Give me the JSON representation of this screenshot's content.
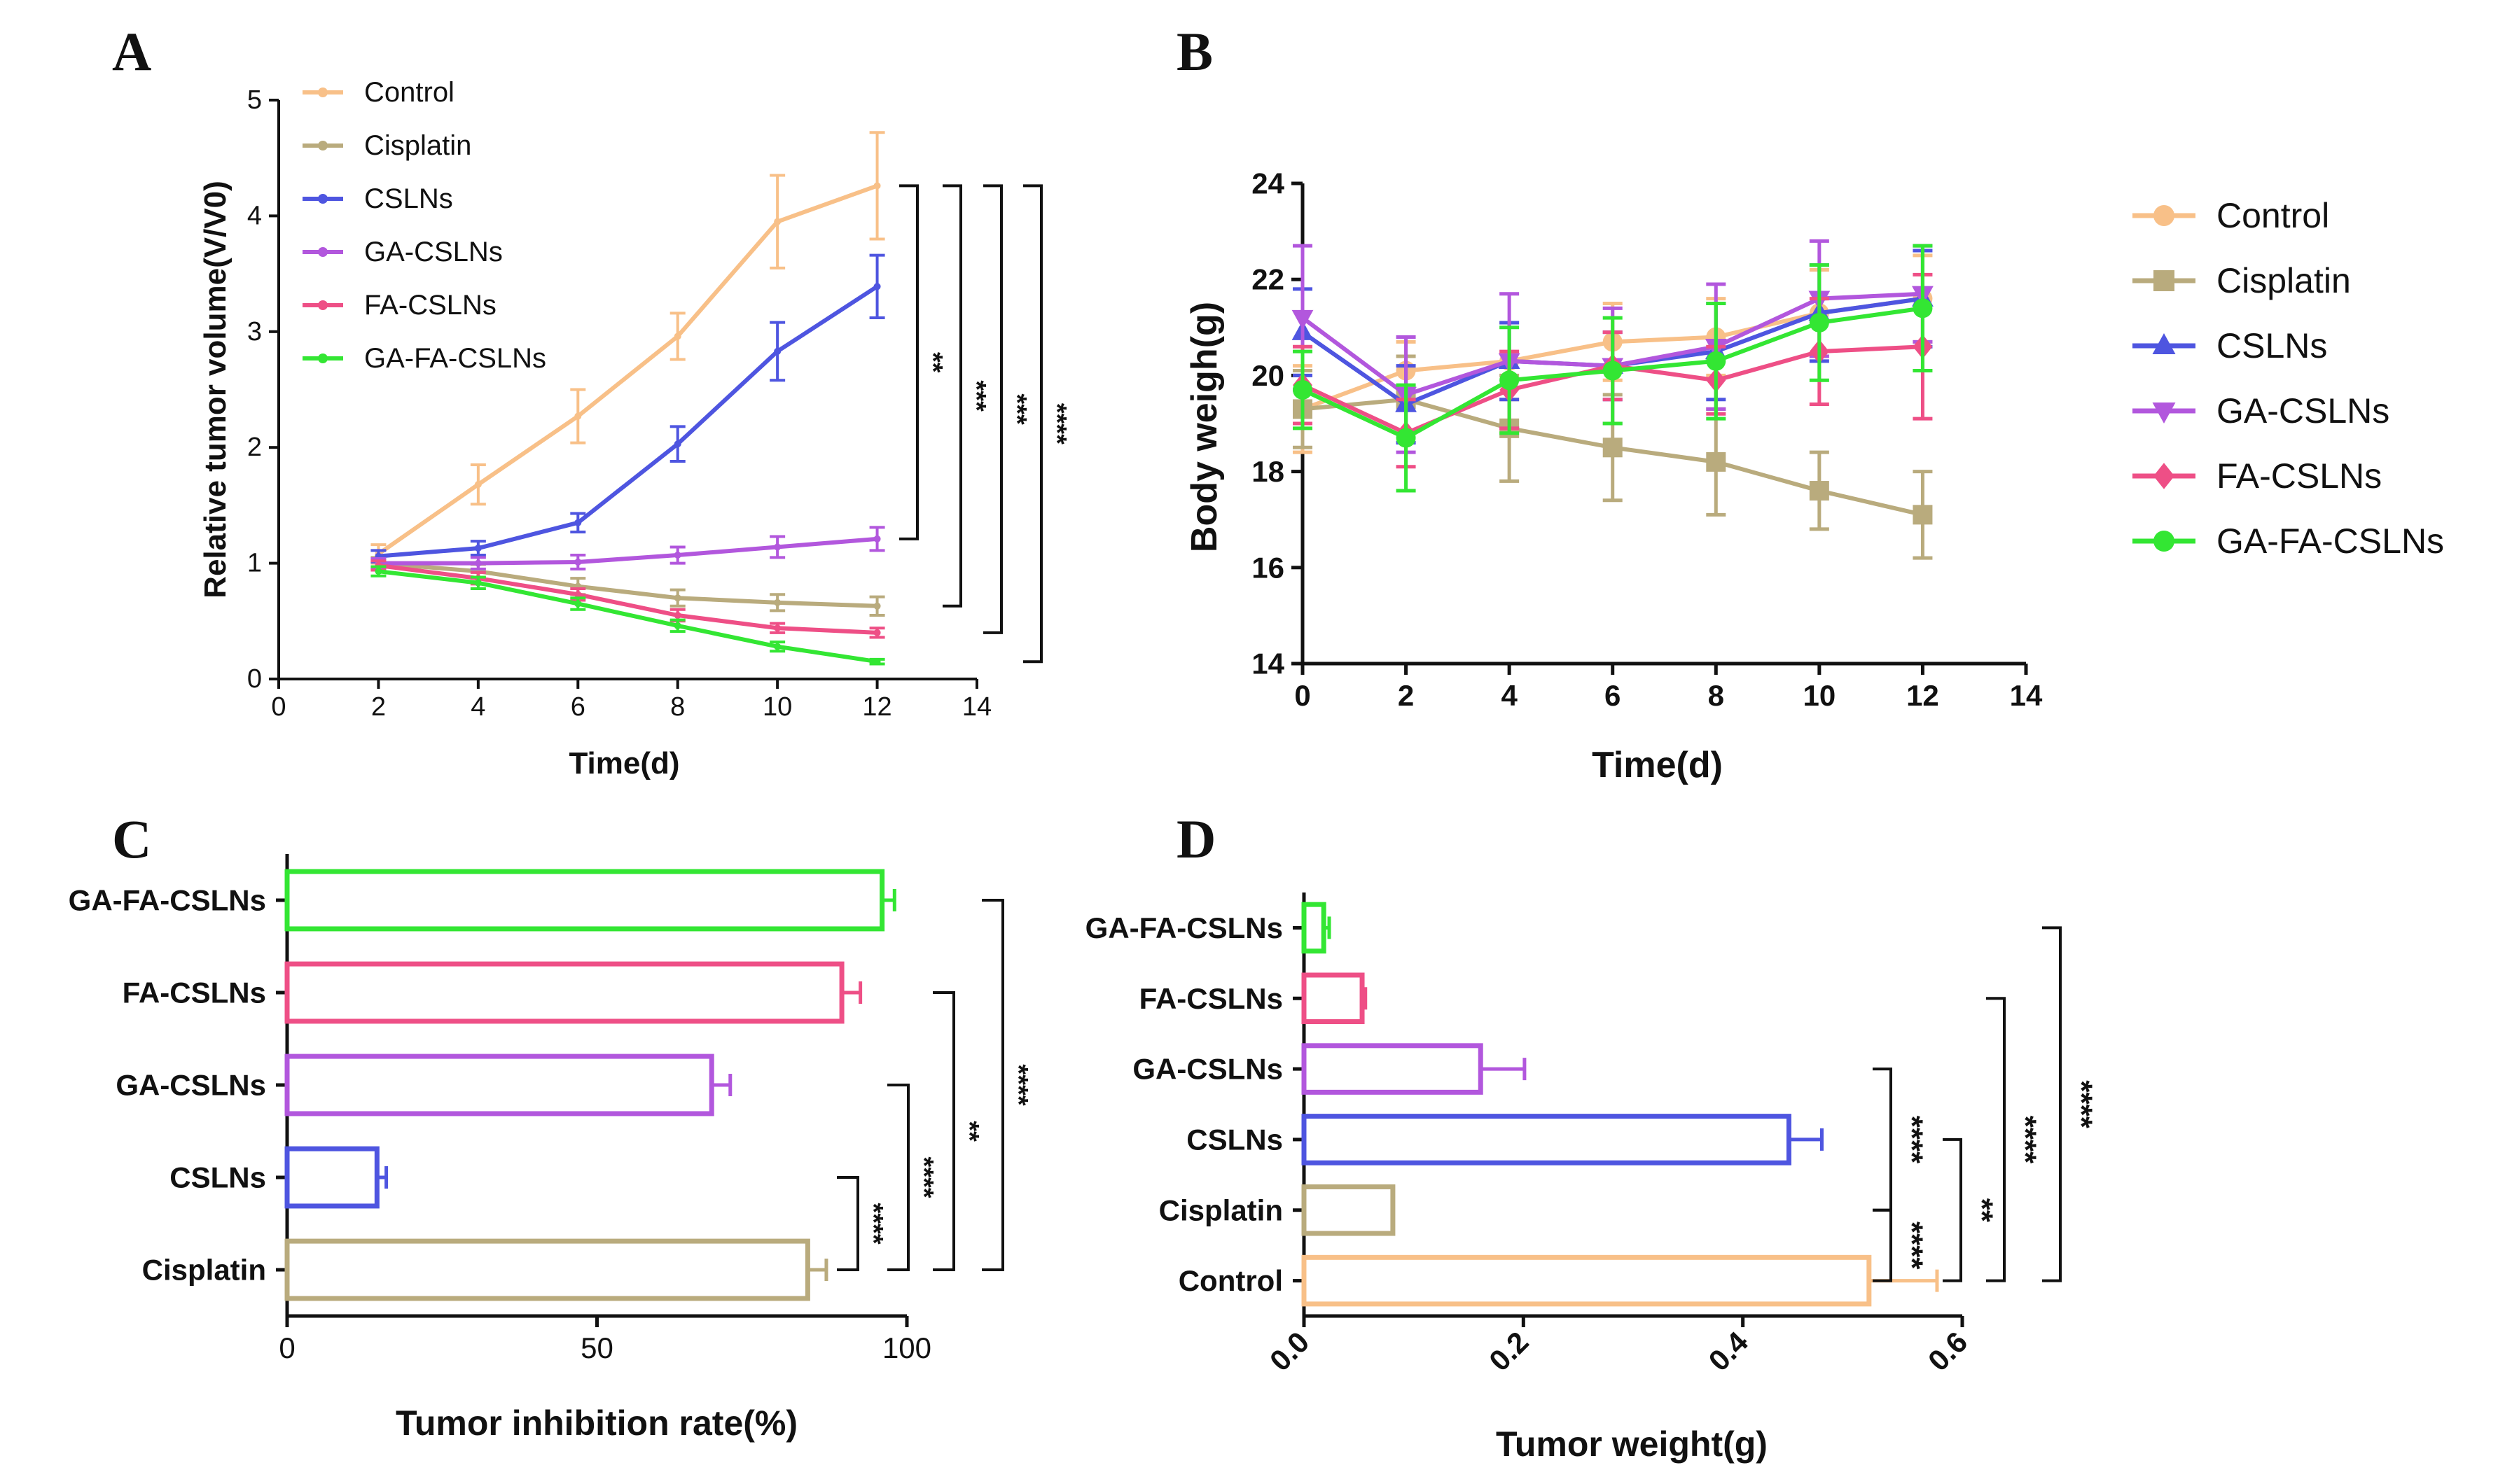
{
  "colors": {
    "Control": "#f8c088",
    "Cisplatin": "#b9ab7d",
    "CSLNs": "#4e55e0",
    "GA-CSLNs": "#b257dd",
    "FA-CSLNs": "#ee4f86",
    "GA-FA-CSLNs": "#33e633"
  },
  "chart_data": [
    {
      "panel": "A",
      "type": "line",
      "xlabel": "Time(d)",
      "ylabel": "Relative tumor volume(V/V0)",
      "xlim": [
        0,
        14
      ],
      "ylim": [
        0,
        5
      ],
      "xticks": [
        "0",
        "2",
        "4",
        "6",
        "8",
        "10",
        "12",
        "14"
      ],
      "yticks": [
        "0",
        "1",
        "2",
        "3",
        "4",
        "5"
      ],
      "x": [
        2,
        4,
        6,
        8,
        10,
        12
      ],
      "legend": "top-left",
      "series": [
        {
          "name": "Control",
          "values": [
            1.08,
            1.68,
            2.27,
            2.96,
            3.95,
            4.26
          ],
          "err": [
            0.08,
            0.17,
            0.23,
            0.2,
            0.4,
            0.46
          ]
        },
        {
          "name": "Cisplatin",
          "values": [
            1.0,
            0.93,
            0.8,
            0.7,
            0.66,
            0.63
          ],
          "err": [
            0.05,
            0.06,
            0.07,
            0.07,
            0.07,
            0.08
          ]
        },
        {
          "name": "CSLNs",
          "values": [
            1.06,
            1.13,
            1.35,
            2.03,
            2.83,
            3.39
          ],
          "err": [
            0.05,
            0.06,
            0.08,
            0.15,
            0.25,
            0.27
          ]
        },
        {
          "name": "GA-CSLNs",
          "values": [
            1.0,
            1.0,
            1.01,
            1.07,
            1.14,
            1.21
          ],
          "err": [
            0.04,
            0.05,
            0.06,
            0.07,
            0.09,
            0.1
          ]
        },
        {
          "name": "FA-CSLNs",
          "values": [
            0.98,
            0.87,
            0.73,
            0.55,
            0.44,
            0.4
          ],
          "err": [
            0.04,
            0.05,
            0.05,
            0.05,
            0.04,
            0.04
          ]
        },
        {
          "name": "GA-FA-CSLNs",
          "values": [
            0.93,
            0.83,
            0.65,
            0.46,
            0.28,
            0.15
          ],
          "err": [
            0.04,
            0.05,
            0.05,
            0.05,
            0.04,
            0.02
          ]
        }
      ],
      "significance": [
        "**",
        "***",
        "***",
        "****"
      ]
    },
    {
      "panel": "B",
      "type": "line",
      "xlabel": "Time(d)",
      "ylabel": "Body weigh(g)",
      "xlim": [
        0,
        14
      ],
      "ylim": [
        14,
        24
      ],
      "xticks": [
        "0",
        "2",
        "4",
        "6",
        "8",
        "10",
        "12",
        "14"
      ],
      "yticks": [
        "14",
        "16",
        "18",
        "20",
        "22",
        "24"
      ],
      "x": [
        0,
        2,
        4,
        6,
        8,
        10,
        12
      ],
      "legend": "right",
      "series": [
        {
          "name": "Control",
          "marker": "circle",
          "values": [
            19.3,
            20.1,
            20.3,
            20.7,
            20.8,
            21.3,
            21.6
          ],
          "err": [
            0.9,
            0.6,
            0.8,
            0.8,
            0.8,
            0.9,
            0.9
          ]
        },
        {
          "name": "Cisplatin",
          "marker": "square",
          "values": [
            19.3,
            19.5,
            18.9,
            18.5,
            18.2,
            17.6,
            17.1
          ],
          "err": [
            0.8,
            0.9,
            1.1,
            1.1,
            1.1,
            0.8,
            0.9
          ]
        },
        {
          "name": "CSLNs",
          "marker": "triangle-up",
          "values": [
            20.9,
            19.4,
            20.3,
            20.2,
            20.5,
            21.3,
            21.6
          ],
          "err": [
            0.9,
            0.8,
            0.8,
            0.7,
            1.0,
            1.0,
            1.0
          ]
        },
        {
          "name": "GA-CSLNs",
          "marker": "triangle-down",
          "values": [
            21.2,
            19.6,
            20.3,
            20.2,
            20.6,
            21.6,
            21.7
          ],
          "err": [
            1.5,
            1.2,
            1.4,
            1.2,
            1.3,
            1.2,
            1.0
          ]
        },
        {
          "name": "FA-CSLNs",
          "marker": "diamond",
          "values": [
            19.8,
            18.8,
            19.7,
            20.2,
            19.9,
            20.5,
            20.6
          ],
          "err": [
            0.8,
            0.7,
            0.8,
            0.7,
            0.7,
            1.1,
            1.5
          ]
        },
        {
          "name": "GA-FA-CSLNs",
          "marker": "circle",
          "values": [
            19.7,
            18.7,
            19.9,
            20.1,
            20.3,
            21.1,
            21.4
          ],
          "err": [
            0.8,
            1.1,
            1.1,
            1.1,
            1.2,
            1.2,
            1.3
          ]
        }
      ]
    },
    {
      "panel": "C",
      "type": "bar",
      "orientation": "horizontal",
      "xlabel": "Tumor inhibition rate(%)",
      "xlim": [
        0,
        100
      ],
      "xticks": [
        "0",
        "50",
        "100"
      ],
      "categories": [
        "Cisplatin",
        "CSLNs",
        "GA-CSLNs",
        "FA-CSLNs",
        "GA-FA-CSLNs"
      ],
      "values": [
        84.0,
        14.5,
        68.5,
        89.5,
        96.0
      ],
      "err": [
        3.0,
        1.5,
        3.0,
        3.0,
        2.0
      ],
      "significance": [
        "****",
        "****",
        "**",
        "****"
      ]
    },
    {
      "panel": "D",
      "type": "bar",
      "orientation": "horizontal",
      "xlabel": "Tumor weight(g)",
      "xlim": [
        0,
        0.6
      ],
      "xticks": [
        "0.0",
        "0.2",
        "0.4",
        "0.6"
      ],
      "categories": [
        "Control",
        "Cisplatin",
        "CSLNs",
        "GA-CSLNs",
        "FA-CSLNs",
        "GA-FA-CSLNs"
      ],
      "values": [
        0.515,
        0.081,
        0.442,
        0.161,
        0.053,
        0.018
      ],
      "err": [
        0.062,
        0.0,
        0.03,
        0.04,
        0.003,
        0.005
      ],
      "significance": [
        "****",
        "****",
        "**",
        "****",
        "****"
      ]
    }
  ]
}
